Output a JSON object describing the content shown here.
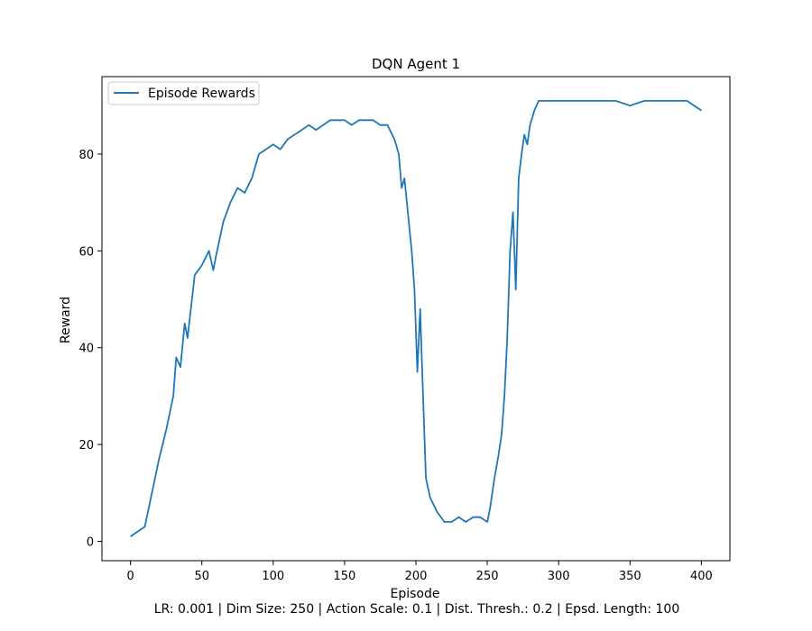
{
  "chart_data": {
    "type": "line",
    "title": "DQN Agent 1",
    "xlabel": "Episode",
    "ylabel": "Reward",
    "footnote": "LR: 0.001 | Dim Size: 250 | Action Scale: 0.1 | Dist. Thresh.: 0.2 | Epsd. Length: 100",
    "xlim": [
      -20,
      420
    ],
    "ylim": [
      -4,
      96
    ],
    "xticks": [
      0,
      50,
      100,
      150,
      200,
      250,
      300,
      350,
      400
    ],
    "yticks": [
      0,
      20,
      40,
      60,
      80
    ],
    "legend_position": "top-left",
    "grid": false,
    "series": [
      {
        "name": "Episode Rewards",
        "color": "#1f77b4",
        "x": [
          0,
          5,
          10,
          15,
          20,
          25,
          30,
          32,
          35,
          38,
          40,
          45,
          50,
          55,
          58,
          60,
          65,
          70,
          75,
          80,
          85,
          90,
          95,
          100,
          105,
          110,
          115,
          120,
          125,
          130,
          135,
          140,
          145,
          150,
          155,
          160,
          165,
          170,
          175,
          180,
          185,
          188,
          190,
          192,
          195,
          197,
          199,
          201,
          203,
          205,
          207,
          210,
          215,
          220,
          225,
          230,
          235,
          240,
          245,
          250,
          252,
          255,
          258,
          260,
          262,
          264,
          266,
          268,
          270,
          272,
          274,
          276,
          278,
          280,
          283,
          286,
          290,
          300,
          310,
          320,
          330,
          340,
          350,
          360,
          370,
          380,
          390,
          400
        ],
        "y": [
          1,
          2,
          3,
          10,
          17,
          23,
          30,
          38,
          36,
          45,
          42,
          55,
          57,
          60,
          56,
          59,
          66,
          70,
          73,
          72,
          75,
          80,
          81,
          82,
          81,
          83,
          84,
          85,
          86,
          85,
          86,
          87,
          87,
          87,
          86,
          87,
          87,
          87,
          86,
          86,
          83,
          80,
          73,
          75,
          66,
          60,
          52,
          35,
          48,
          30,
          13,
          9,
          6,
          4,
          4,
          5,
          4,
          5,
          5,
          4,
          7,
          13,
          18,
          22,
          30,
          42,
          60,
          68,
          52,
          75,
          80,
          84,
          82,
          86,
          89,
          91,
          91,
          91,
          91,
          91,
          91,
          91,
          90,
          91,
          91,
          91,
          91,
          89
        ]
      }
    ]
  }
}
